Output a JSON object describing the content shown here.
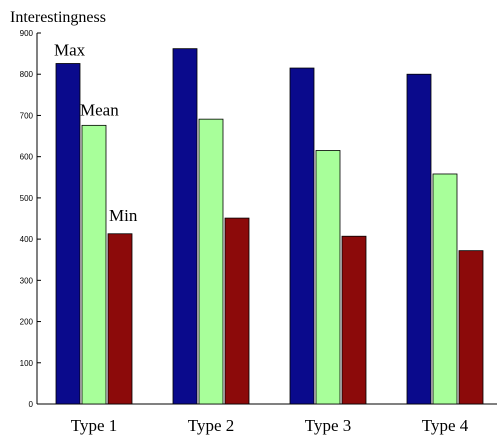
{
  "chart_data": {
    "type": "bar",
    "title": "",
    "xlabel": "",
    "ylabel": "Interestingness",
    "ylim": [
      0,
      900
    ],
    "yticks": [
      0,
      100,
      200,
      300,
      400,
      500,
      600,
      700,
      800,
      900
    ],
    "categories": [
      "Type 1",
      "Type 2",
      "Type 3",
      "Type 4"
    ],
    "series": [
      {
        "name": "Max",
        "color": "#0a0a8c",
        "values": [
          826,
          862,
          815,
          800
        ]
      },
      {
        "name": "Mean",
        "color": "#a8ff9a",
        "values": [
          676,
          691,
          615,
          558
        ]
      },
      {
        "name": "Min",
        "color": "#8c0a0a",
        "values": [
          413,
          451,
          407,
          372
        ]
      }
    ],
    "annotations": [
      {
        "text": "Max",
        "series": 0,
        "category": 0
      },
      {
        "text": "Mean",
        "series": 1,
        "category": 0
      },
      {
        "text": "Min",
        "series": 2,
        "category": 0
      }
    ],
    "grid": false,
    "legend": "none"
  }
}
